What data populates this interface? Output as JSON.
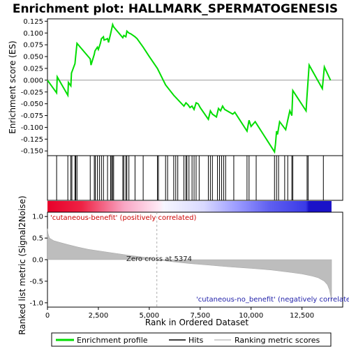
{
  "chart_data": {
    "type": "line",
    "title": "Enrichment plot: HALLMARK_SPERMATOGENESIS",
    "es_panel": {
      "ylabel": "Enrichment score (ES)",
      "ylim": [
        -0.16,
        0.13
      ],
      "yticks": [
        0.125,
        0.1,
        0.075,
        0.05,
        0.025,
        0.0,
        -0.025,
        -0.05,
        -0.075,
        -0.1,
        -0.125,
        -0.15
      ],
      "ytick_labels": [
        "0.125",
        "0.100",
        "0.075",
        "0.050",
        "0.025",
        "0.000",
        "-0.025",
        "-0.050",
        "-0.075",
        "-0.100",
        "-0.125",
        "-0.150"
      ],
      "series": [
        {
          "name": "Enrichment profile",
          "color": "#00dd00",
          "x": [
            0,
            450,
            480,
            1000,
            1030,
            1150,
            1180,
            1350,
            1390,
            1450,
            2100,
            2140,
            2300,
            2330,
            2450,
            2500,
            2600,
            2650,
            2750,
            2780,
            2950,
            3000,
            3100,
            3150,
            3200,
            3250,
            3700,
            3750,
            3850,
            3900,
            4000,
            4100,
            4300,
            4400,
            4700,
            5000,
            5400,
            5800,
            6200,
            6700,
            6800,
            6900,
            7000,
            7100,
            7200,
            7300,
            7400,
            7500,
            7900,
            8000,
            8100,
            8300,
            8400,
            8500,
            8600,
            8700,
            9100,
            9200,
            9800,
            9900,
            10000,
            10200,
            11150,
            11200,
            11250,
            11300,
            11400,
            11700,
            11800,
            11900,
            12000,
            12050,
            12700,
            12750,
            12800,
            12850,
            13500,
            13600,
            13900
          ],
          "y": [
            0.0,
            -0.027,
            0.007,
            -0.032,
            -0.005,
            -0.012,
            0.015,
            0.035,
            0.052,
            0.078,
            0.045,
            0.032,
            0.055,
            0.062,
            0.07,
            0.065,
            0.078,
            0.088,
            0.092,
            0.085,
            0.088,
            0.08,
            0.098,
            0.108,
            0.118,
            0.113,
            0.09,
            0.095,
            0.092,
            0.104,
            0.1,
            0.098,
            0.092,
            0.088,
            0.07,
            0.05,
            0.025,
            -0.01,
            -0.032,
            -0.055,
            -0.048,
            -0.052,
            -0.058,
            -0.055,
            -0.062,
            -0.048,
            -0.05,
            -0.058,
            -0.083,
            -0.065,
            -0.072,
            -0.078,
            -0.06,
            -0.065,
            -0.055,
            -0.062,
            -0.072,
            -0.068,
            -0.108,
            -0.085,
            -0.098,
            -0.088,
            -0.152,
            -0.135,
            -0.108,
            -0.115,
            -0.088,
            -0.105,
            -0.085,
            -0.065,
            -0.075,
            -0.022,
            -0.065,
            -0.032,
            0.0,
            0.032,
            -0.018,
            0.028,
            0.0
          ]
        }
      ]
    },
    "hits_panel": {
      "hit_positions": [
        450,
        1000,
        1150,
        1200,
        1350,
        1390,
        1450,
        2100,
        2300,
        2350,
        2450,
        2550,
        2650,
        2750,
        2950,
        3100,
        3150,
        3200,
        3250,
        3700,
        3750,
        3850,
        3900,
        4000,
        4300,
        4700,
        5400,
        5450,
        5800,
        5900,
        6200,
        6300,
        6400,
        6700,
        6800,
        6850,
        6950,
        7100,
        7200,
        7300,
        7450,
        7900,
        8000,
        8100,
        8350,
        8450,
        8550,
        8650,
        8750,
        9150,
        9800,
        9900,
        10250,
        11150,
        11250,
        11350,
        11650,
        11800,
        12000,
        12050,
        12750,
        12800,
        13550
      ]
    },
    "rank_panel": {
      "ylabel": "Ranked list metric (Signal2Noise)",
      "xlabel": "Rank in Ordered Dataset",
      "xlim": [
        0,
        14500
      ],
      "ylim": [
        -1.1,
        1.1
      ],
      "xticks": [
        0,
        2500,
        5000,
        7500,
        10000,
        12500
      ],
      "xtick_labels": [
        "0",
        "2,500",
        "5,000",
        "7,500",
        "10,000",
        "12,500"
      ],
      "yticks": [
        1.0,
        0.5,
        0.0,
        -0.5,
        -1.0
      ],
      "ytick_labels": [
        "1.0",
        "0.5",
        "0.0",
        "-0.5",
        "-1.0"
      ],
      "n_genes": 13950,
      "zero_cross": 5374,
      "zero_cross_label": "Zero cross at 5374",
      "positive_label": "'cutaneous-benefit' (positively correlated)",
      "negative_label": "'cutaneous-no_benefit' (negatively correlated)",
      "metric_curve": {
        "x": [
          0,
          30,
          100,
          300,
          600,
          1000,
          1500,
          2000,
          3000,
          4000,
          5000,
          5374,
          6000,
          7000,
          8000,
          9000,
          10000,
          11000,
          12000,
          12500,
          13000,
          13300,
          13600,
          13750,
          13850,
          13900,
          13950
        ],
        "y": [
          0.72,
          0.6,
          0.5,
          0.44,
          0.4,
          0.35,
          0.29,
          0.24,
          0.17,
          0.1,
          0.04,
          0.0,
          -0.04,
          -0.09,
          -0.13,
          -0.17,
          -0.2,
          -0.24,
          -0.3,
          -0.33,
          -0.38,
          -0.42,
          -0.5,
          -0.58,
          -0.7,
          -0.82,
          -0.95
        ]
      }
    },
    "legend": {
      "entries": [
        {
          "name": "Enrichment profile",
          "color": "#00dd00"
        },
        {
          "name": "Hits",
          "color": "#000000"
        },
        {
          "name": "Ranking metric scores",
          "color": "#c0c0c0"
        }
      ]
    }
  }
}
